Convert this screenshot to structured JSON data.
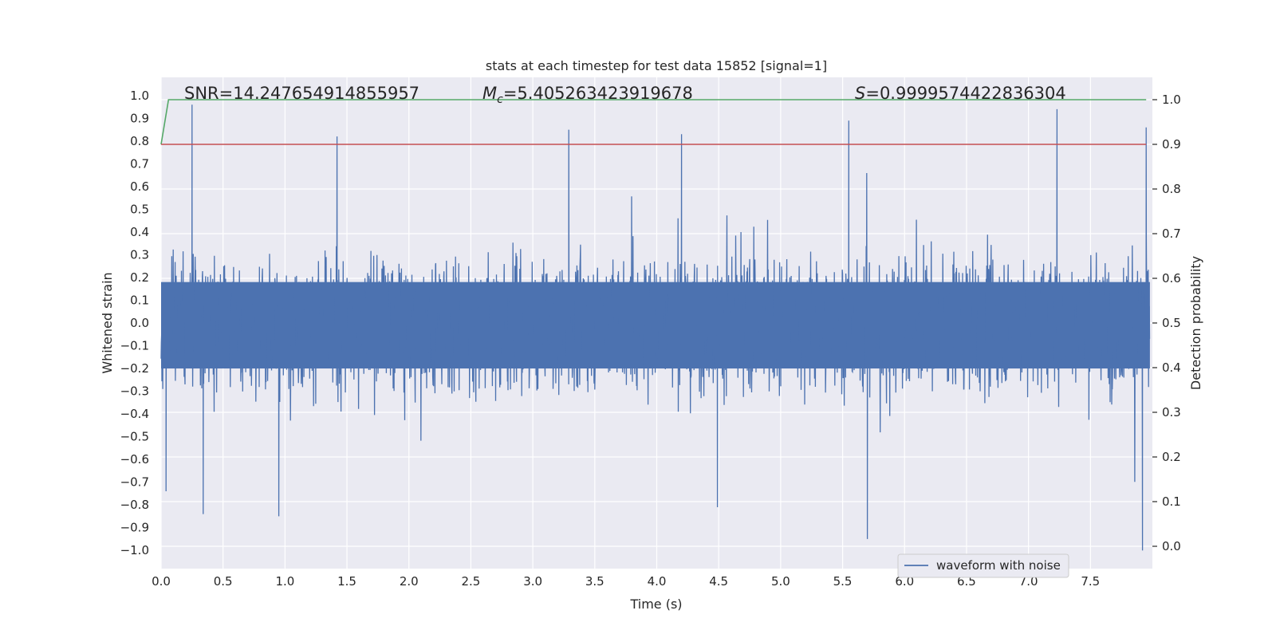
{
  "chart_data": {
    "type": "line",
    "title": "stats at each timestep for test data 15852 [signal=1]",
    "xlabel": "Time (s)",
    "ylabel": "Whitened strain",
    "y2label": "Detection probability",
    "xlim": [
      0,
      8
    ],
    "ylim": [
      -1.08,
      1.08
    ],
    "y2lim": [
      -0.05,
      1.05
    ],
    "xticks": [
      "0.0",
      "0.5",
      "1.0",
      "1.5",
      "2.0",
      "2.5",
      "3.0",
      "3.5",
      "4.0",
      "4.5",
      "5.0",
      "5.5",
      "6.0",
      "6.5",
      "7.0",
      "7.5"
    ],
    "yticks": [
      "1.0",
      "0.9",
      "0.8",
      "0.7",
      "0.6",
      "0.5",
      "0.4",
      "0.3",
      "0.2",
      "0.1",
      "0.0",
      "−0.1",
      "−0.2",
      "−0.3",
      "−0.4",
      "−0.5",
      "−0.6",
      "−0.7",
      "−0.8",
      "−0.9",
      "−1.0"
    ],
    "y2ticks": [
      "1.0",
      "0.9",
      "0.8",
      "0.7",
      "0.6",
      "0.5",
      "0.4",
      "0.3",
      "0.2",
      "0.1",
      "0.0"
    ],
    "annotations": {
      "snr": "SNR=14.247654914855957",
      "mc_symbol": "M",
      "mc_sub": "c",
      "mc_value": "=5.405263423919678",
      "s_symbol": "S",
      "s_value": "=0.9999574422836304"
    },
    "legend": {
      "position": "lower-right",
      "entries": [
        "waveform with noise"
      ]
    },
    "series": [
      {
        "name": "waveform with noise",
        "color": "#4c72b0",
        "description": "dense noisy whitened strain, 8 s, mostly within ±0.5 with spikes",
        "peaks": [
          {
            "x": 0.04,
            "y": -0.74
          },
          {
            "x": 0.25,
            "y": 0.96
          },
          {
            "x": 0.34,
            "y": -0.84
          },
          {
            "x": 0.95,
            "y": -0.85
          },
          {
            "x": 1.42,
            "y": 0.82
          },
          {
            "x": 3.29,
            "y": 0.85
          },
          {
            "x": 4.2,
            "y": 0.83
          },
          {
            "x": 4.49,
            "y": -0.81
          },
          {
            "x": 5.55,
            "y": 0.89
          },
          {
            "x": 5.7,
            "y": -0.95
          },
          {
            "x": 7.23,
            "y": 0.94
          },
          {
            "x": 7.92,
            "y": -1.0
          },
          {
            "x": 7.95,
            "y": 0.86
          }
        ]
      },
      {
        "name": "detection probability",
        "axis": "right",
        "color": "#55a868",
        "x": [
          0,
          0.06,
          7.95
        ],
        "values": [
          0.9,
          1.0,
          1.0
        ]
      },
      {
        "name": "threshold",
        "axis": "right",
        "color": "#c44e52",
        "x": [
          0,
          7.95
        ],
        "values": [
          0.9,
          0.9
        ]
      }
    ]
  }
}
